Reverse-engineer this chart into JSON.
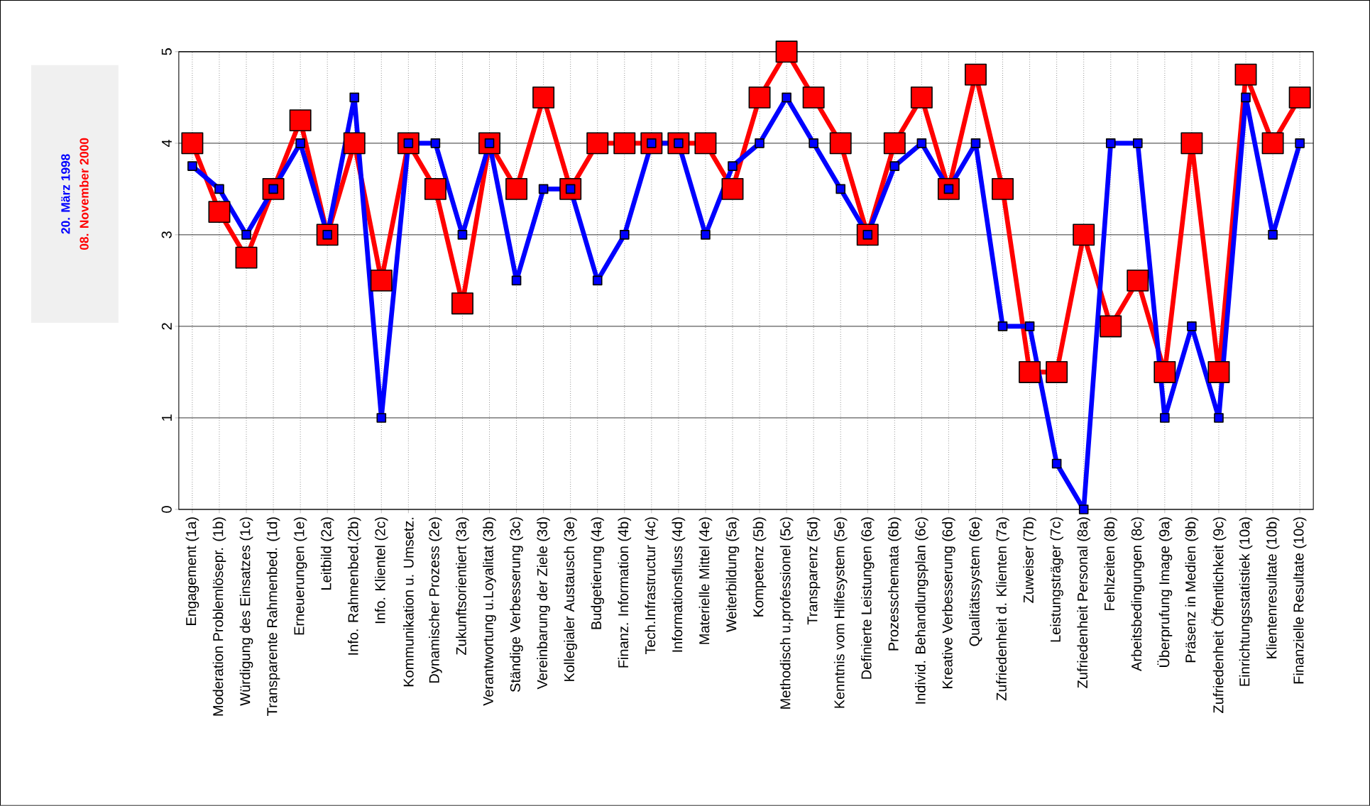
{
  "chart_data": {
    "type": "line",
    "categories": [
      "Engagement (1a)",
      "Moderation Problemlösepr. (1b)",
      "Würdigung des Einsatzes (1c)",
      "Transparente Rahmenbed. (1d)",
      "Erneuerungen (1e)",
      "Leitbild (2a)",
      "Info. Rahmenbed.(2b)",
      "Info. Klientel (2c)",
      "Kommunikation u. Umsetz.",
      "Dynamischer Prozess (2e)",
      "Zukunftsorientiert (3a)",
      "Verantwortung u.Loyalitat (3b)",
      "Ständige Verbesserung (3c)",
      "Vereinbarung der Ziele (3d)",
      "Kollegialer Austausch (3e)",
      "Budgetierung (4a)",
      "Finanz. Information (4b)",
      "Tech.Infrastructur (4c)",
      "Informationsfluss (4d)",
      "Materielle Mittel (4e)",
      "Weiterbildung (5a)",
      "Kompetenz (5b)",
      "Methodisch u.professionel (5c)",
      "Transparenz (5d)",
      "Kenntnis vom Hilfesystem (5e)",
      "Definierte Leistungen (6a)",
      "Prozesschemata (6b)",
      "Individ. Behandlungsplan (6c)",
      "Kreative Verbesserung (6d)",
      "Qualitätssystem (6e)",
      "Zufriedenheit d. Klienten (7a)",
      "Zuweiser (7b)",
      "Leistungsträger (7c)",
      "Zufriedenheit Personal (8a)",
      "Fehlzeiten (8b)",
      "Arbeitsbedingungen (8c)",
      "Überprufung Image (9a)",
      "Präsenz in Medien (9b)",
      "Zufriedenheit Öffentlichkeit (9c)",
      "Einrichtungsstatistiek (10a)",
      "Klientenresultate (10b)",
      "Finanzielle Resultate (10c)"
    ],
    "series": [
      {
        "name": "20. März 1998",
        "color": "#0000ff",
        "values": [
          3.75,
          3.5,
          3,
          3.5,
          4,
          3,
          4.5,
          1,
          4,
          4,
          3,
          4,
          2.5,
          3.5,
          3.5,
          2.5,
          3,
          4,
          4,
          3,
          3.75,
          4,
          4.5,
          4,
          3.5,
          3,
          3.75,
          4,
          3.5,
          4,
          2,
          2,
          0.5,
          0,
          4,
          4,
          1,
          2,
          1,
          4.5,
          3,
          4
        ]
      },
      {
        "name": "08. November 2000",
        "color": "#ff0000",
        "values": [
          4,
          3.25,
          2.75,
          3.5,
          4.25,
          3,
          4,
          2.5,
          4,
          3.5,
          2.25,
          4,
          3.5,
          4.5,
          3.5,
          4,
          4,
          4,
          4,
          4,
          3.5,
          4.5,
          5,
          4.5,
          4,
          3,
          4,
          4.5,
          3.5,
          4.75,
          3.5,
          1.5,
          1.5,
          3,
          2,
          2.5,
          1.5,
          4,
          1.5,
          4.75,
          4,
          4.5
        ]
      }
    ],
    "ylim": [
      0,
      5
    ],
    "yticks": [
      0,
      1,
      2,
      3,
      4,
      5
    ],
    "grid": true,
    "legend": "left",
    "marker": "square",
    "line_style": "solid"
  }
}
